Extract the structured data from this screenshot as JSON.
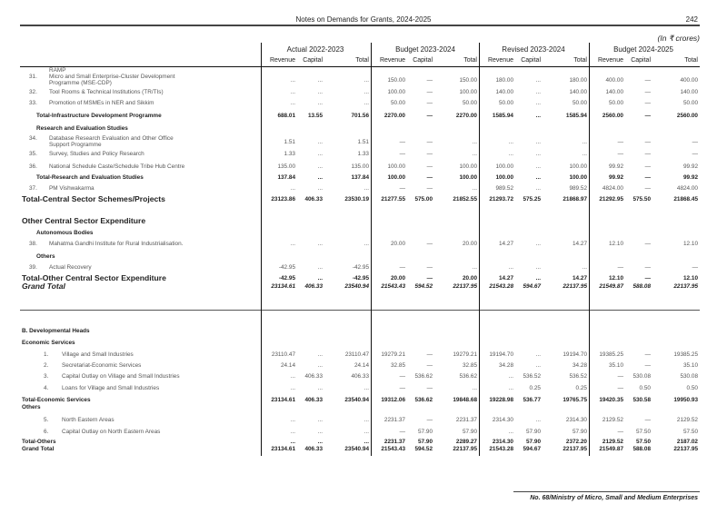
{
  "header": {
    "title": "Notes on Demands for Grants, 2024-2025",
    "page_number": "242",
    "unit_note": "(In ₹ crores)"
  },
  "column_groups": [
    "Actual 2022-2023",
    "Budget 2023-2024",
    "Revised 2023-2024",
    "Budget 2024-2025"
  ],
  "sub_columns": [
    "Revenue",
    "Capital",
    "Total"
  ],
  "rows": [
    {
      "label": "RAMP",
      "type": "item-cont"
    },
    {
      "num": "31.",
      "label": "Micro and Small Enterprise-Cluster Development",
      "label2": "Programme (MSE-CDP)",
      "type": "item",
      "values": [
        "...",
        "...",
        "...",
        "150.00",
        "—",
        "150.00",
        "180.00",
        "...",
        "180.00",
        "400.00",
        "—",
        "400.00"
      ]
    },
    {
      "num": "32.",
      "label": "Tool Rooms & Technical Institutions (TR/TIs)",
      "type": "item",
      "values": [
        "...",
        "...",
        "...",
        "100.00",
        "—",
        "100.00",
        "140.00",
        "...",
        "140.00",
        "140.00",
        "—",
        "140.00"
      ]
    },
    {
      "num": "33.",
      "label": "Promotion of MSMEs in NER and Sikkim",
      "type": "item",
      "values": [
        "...",
        "...",
        "...",
        "50.00",
        "—",
        "50.00",
        "50.00",
        "...",
        "50.00",
        "50.00",
        "—",
        "50.00"
      ]
    },
    {
      "label": "Total-Infrastructure Development Programme",
      "type": "total",
      "values": [
        "688.01",
        "13.55",
        "701.56",
        "2270.00",
        "—",
        "2270.00",
        "1585.94",
        "...",
        "1585.94",
        "2560.00",
        "—",
        "2560.00"
      ]
    },
    {
      "label": "Research and Evaluation Studies",
      "type": "heading"
    },
    {
      "num": "34.",
      "label": "Database Research Evaluation and Other Office",
      "label2": "Support Programme",
      "type": "item",
      "values": [
        "1.51",
        "...",
        "1.51",
        "—",
        "—",
        "...",
        "...",
        "...",
        "...",
        "—",
        "—",
        "—"
      ]
    },
    {
      "num": "35.",
      "label": "Survey, Studies and Policy Research",
      "type": "item",
      "values": [
        "1.33",
        "...",
        "1.33",
        "—",
        "—",
        "...",
        "...",
        "...",
        "...",
        "—",
        "—",
        "—"
      ]
    },
    {
      "num": "36.",
      "label": "National Schedule Caste/Schedule Tribe Hub Centre",
      "type": "item",
      "values": [
        "135.00",
        "...",
        "135.00",
        "100.00",
        "—",
        "100.00",
        "100.00",
        "...",
        "100.00",
        "99.92",
        "—",
        "99.92"
      ]
    },
    {
      "label": "Total-Research and Evaluation Studies",
      "type": "total",
      "values": [
        "137.84",
        "...",
        "137.84",
        "100.00",
        "—",
        "100.00",
        "100.00",
        "...",
        "100.00",
        "99.92",
        "—",
        "99.92"
      ]
    },
    {
      "num": "37.",
      "label": "PM Vishwakarma",
      "type": "item",
      "values": [
        "...",
        "...",
        "...",
        "—",
        "—",
        "...",
        "989.52",
        "...",
        "989.52",
        "4824.00",
        "—",
        "4824.00"
      ]
    },
    {
      "label": "Total-Central Sector Schemes/Projects",
      "type": "big",
      "values": [
        "23123.86",
        "406.33",
        "23530.19",
        "21277.55",
        "575.00",
        "21852.55",
        "21293.72",
        "575.25",
        "21868.97",
        "21292.95",
        "575.50",
        "21868.45"
      ]
    },
    {
      "label": "Other Central Sector Expenditure",
      "type": "big"
    },
    {
      "label": "Autonomous Bodies",
      "type": "heading"
    },
    {
      "num": "38.",
      "label": "Mahatma Gandhi Institute for Rural Industrialisation.",
      "type": "item",
      "values": [
        "...",
        "...",
        "...",
        "20.00",
        "—",
        "20.00",
        "14.27",
        "...",
        "14.27",
        "12.10",
        "—",
        "12.10"
      ]
    },
    {
      "label": "Others",
      "type": "heading"
    },
    {
      "num": "39.",
      "label": "Actual Recovery",
      "type": "item",
      "values": [
        "-42.95",
        "...",
        "-42.95",
        "—",
        "—",
        "...",
        "...",
        "...",
        "...",
        "—",
        "—",
        "—"
      ]
    },
    {
      "label": "Total-Other Central Sector Expenditure",
      "type": "big",
      "values": [
        "-42.95",
        "...",
        "-42.95",
        "20.00",
        "—",
        "20.00",
        "14.27",
        "...",
        "14.27",
        "12.10",
        "—",
        "12.10"
      ]
    },
    {
      "label": "Grand Total",
      "type": "grand",
      "values": [
        "23134.61",
        "406.33",
        "23540.94",
        "21543.43",
        "594.52",
        "22137.95",
        "21543.28",
        "594.67",
        "22137.95",
        "21549.87",
        "588.08",
        "22137.95"
      ]
    },
    {
      "label": "B. Developmental Heads",
      "type": "heading"
    },
    {
      "label": "Economic Services",
      "type": "heading"
    },
    {
      "num": "1.",
      "label": "Village and Small Industries",
      "type": "item2",
      "values": [
        "23110.47",
        "...",
        "23110.47",
        "19279.21",
        "—",
        "19279.21",
        "19194.70",
        "...",
        "19194.70",
        "19385.25",
        "—",
        "19385.25"
      ]
    },
    {
      "num": "2.",
      "label": "Secretariat-Economic Services",
      "type": "item2",
      "values": [
        "24.14",
        "...",
        "24.14",
        "32.85",
        "—",
        "32.85",
        "34.28",
        "...",
        "34.28",
        "35.10",
        "—",
        "35.10"
      ]
    },
    {
      "num": "3.",
      "label": "Capital Outlay on Village and Small Industries",
      "type": "item2",
      "values": [
        "...",
        "406.33",
        "406.33",
        "—",
        "536.62",
        "536.62",
        "...",
        "536.52",
        "536.52",
        "—",
        "530.08",
        "530.08"
      ]
    },
    {
      "num": "4.",
      "label": "Loans for  Village and Small Industries",
      "type": "item2",
      "values": [
        "...",
        "...",
        "...",
        "—",
        "—",
        "...",
        "...",
        "0.25",
        "0.25",
        "—",
        "0.50",
        "0.50"
      ]
    },
    {
      "label": "Total-Economic Services",
      "type": "total0",
      "values": [
        "23134.61",
        "406.33",
        "23540.94",
        "19312.06",
        "536.62",
        "19848.68",
        "19228.98",
        "536.77",
        "19765.75",
        "19420.35",
        "530.58",
        "19950.93"
      ]
    },
    {
      "label": "Others",
      "type": "total0"
    },
    {
      "num": "5.",
      "label": "North Eastern Areas",
      "type": "item2",
      "values": [
        "...",
        "...",
        "...",
        "2231.37",
        "—",
        "2231.37",
        "2314.30",
        "...",
        "2314.30",
        "2129.52",
        "—",
        "2129.52"
      ]
    },
    {
      "num": "6.",
      "label": "Capital Outlay on North Eastern Areas",
      "type": "item2",
      "values": [
        "...",
        "...",
        "...",
        "—",
        "57.90",
        "57.90",
        "...",
        "57.90",
        "57.90",
        "—",
        "57.50",
        "57.50"
      ]
    },
    {
      "label": "Total-Others",
      "type": "total0",
      "values": [
        "...",
        "...",
        "...",
        "2231.37",
        "57.90",
        "2289.27",
        "2314.30",
        "57.90",
        "2372.20",
        "2129.52",
        "57.50",
        "2187.02"
      ]
    },
    {
      "label": "Grand Total",
      "type": "total0",
      "values": [
        "23134.61",
        "406.33",
        "23540.94",
        "21543.43",
        "594.52",
        "22137.95",
        "21543.28",
        "594.67",
        "22137.95",
        "21549.87",
        "588.08",
        "22137.95"
      ]
    }
  ],
  "footer": {
    "text": "No. 68/Ministry of Micro, Small and Medium Enterprises"
  }
}
